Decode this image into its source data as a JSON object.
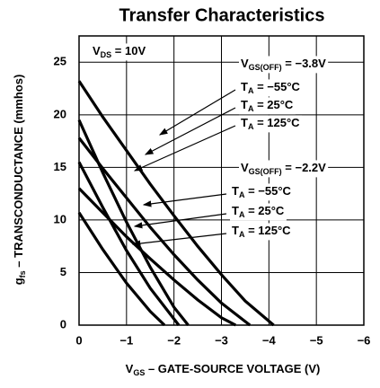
{
  "chart_data": {
    "type": "line",
    "title": "Transfer Characteristics",
    "x_label": {
      "main": "V",
      "sub": "GS",
      "rest": " – GATE-SOURCE VOLTAGE (V)"
    },
    "y_label": {
      "main": "g",
      "sub": "fs",
      "rest": " – TRANSCONDUCTANCE (mmhos)"
    },
    "xlim": [
      0,
      -6
    ],
    "xticks": [
      0,
      {
        "value": -1,
        "label": "−1"
      },
      {
        "value": -2,
        "label": "−2"
      },
      {
        "value": -3,
        "label": "−3"
      },
      {
        "value": -4,
        "label": "−4"
      },
      {
        "value": -5,
        "label": "−5"
      },
      {
        "value": -6,
        "label": "−6"
      }
    ],
    "ylim": [
      0,
      27.5
    ],
    "yticks": [
      0,
      5,
      10,
      15,
      20,
      25
    ],
    "grid": true,
    "series": [
      {
        "color": "#000000",
        "x": [
          0,
          -0.5,
          -1,
          -1.5,
          -2,
          -2.5,
          -3,
          -3.5,
          -4.1
        ],
        "values": [
          23.2,
          19.8,
          16.6,
          13.4,
          10.4,
          7.5,
          4.8,
          2.3,
          0
        ]
      },
      {
        "color": "#000000",
        "x": [
          0,
          -0.5,
          -1,
          -1.5,
          -2,
          -2.5,
          -3,
          -3.6
        ],
        "values": [
          17.8,
          14.9,
          12.1,
          9.3,
          6.7,
          4.3,
          2.1,
          0
        ]
      },
      {
        "color": "#000000",
        "x": [
          0,
          -0.5,
          -1,
          -1.5,
          -2,
          -2.5,
          -3,
          -3.3
        ],
        "values": [
          13,
          10.7,
          8.4,
          6.3,
          4.3,
          2.4,
          0.7,
          0
        ]
      },
      {
        "color": "#000000",
        "x": [
          0,
          -0.5,
          -1,
          -1.5,
          -2,
          -2.3
        ],
        "values": [
          19.5,
          14.5,
          9.8,
          5.5,
          1.7,
          0
        ]
      },
      {
        "color": "#000000",
        "x": [
          0,
          -0.5,
          -1,
          -1.5,
          -2.1
        ],
        "values": [
          15.5,
          11.2,
          7.1,
          3.5,
          0
        ]
      },
      {
        "color": "#000000",
        "x": [
          0,
          -0.5,
          -1,
          -1.5,
          -1.8
        ],
        "values": [
          10.7,
          7.2,
          4.0,
          1.3,
          0
        ]
      }
    ],
    "annotations": [
      {
        "main": "V",
        "sub": "DS",
        "rest": " = 10V"
      },
      {
        "main": "V",
        "sub": "GS(OFF)",
        "rest": " = −3.8V"
      },
      {
        "main": "T",
        "sub": "A",
        "rest": " = −55°C"
      },
      {
        "main": "T",
        "sub": "A",
        "rest": " = 25°C"
      },
      {
        "main": "T",
        "sub": "A",
        "rest": " = 125°C"
      },
      {
        "main": "V",
        "sub": "GS(OFF)",
        "rest": " = −2.2V"
      },
      {
        "main": "T",
        "sub": "A",
        "rest": " = −55°C"
      },
      {
        "main": "T",
        "sub": "A",
        "rest": " = 25°C"
      },
      {
        "main": "T",
        "sub": "A",
        "rest": " = 125°C"
      }
    ]
  }
}
